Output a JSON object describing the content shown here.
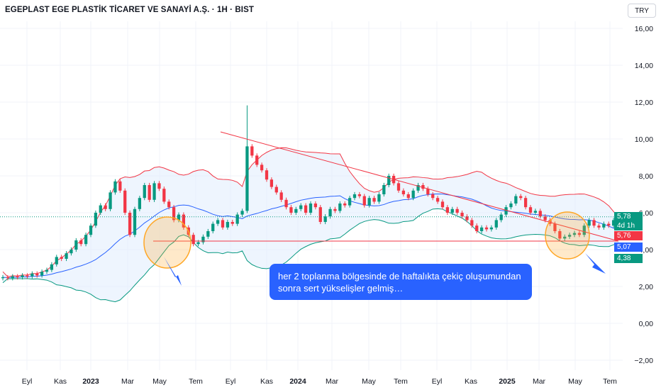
{
  "header": {
    "title": "EGEPLAST EGE PLASTİK TİCARET VE SANAYİ A.Ş. · 1H · BIST",
    "currency": "TRY"
  },
  "price_tags": {
    "last": "5,78",
    "countdown": "4d 1h",
    "upper": "5,76",
    "middle": "5,07",
    "lower": "4,38"
  },
  "annotation": {
    "text": "her 2 toplanma bölgesinde de haftalıkta çekiç oluşumundan sonra sert yükselişler gelmiş…"
  },
  "colors": {
    "up": "#089981",
    "down": "#f23645",
    "bb_upper": "#f23645",
    "bb_basis": "#2962ff",
    "bb_lower": "#089981",
    "bb_fill": "#e3effd",
    "trendline": "#f23645",
    "highlight_circle": "#ffa726",
    "note_bg": "#2962ff"
  },
  "chart_data": {
    "type": "candlestick",
    "symbol": "EGEPLAST EGE PLASTİK TİCARET VE SANAYİ A.Ş.",
    "interval": "1H",
    "exchange": "BIST",
    "ylim": [
      -2,
      16
    ],
    "yticks": [
      -2,
      0,
      2,
      4,
      6,
      8,
      10,
      12,
      14,
      16
    ],
    "ytick_labels": [
      "−2,00",
      "0,00",
      "2,00",
      "4,00",
      "6,00",
      "8,00",
      "10,00",
      "12,00",
      "14,00",
      "16,00"
    ],
    "xtick_labels": [
      "Eyl",
      "Kas",
      "2023",
      "Mar",
      "May",
      "Tem",
      "Eyl",
      "Kas",
      "2024",
      "Mar",
      "May",
      "Tem",
      "Eyl",
      "Kas",
      "2025",
      "Mar",
      "May",
      "Tem"
    ],
    "xtick_bold": [
      false,
      false,
      true,
      false,
      false,
      false,
      false,
      false,
      true,
      false,
      false,
      false,
      false,
      false,
      true,
      false,
      false,
      false
    ],
    "closes": [
      2.5,
      2.45,
      2.55,
      2.5,
      2.6,
      2.55,
      2.7,
      2.6,
      2.8,
      2.9,
      3.2,
      3.6,
      3.5,
      3.8,
      4.0,
      4.5,
      4.3,
      4.8,
      5.3,
      6.0,
      6.4,
      6.2,
      7.1,
      7.7,
      7.2,
      6.0,
      4.8,
      6.2,
      6.8,
      7.5,
      6.7,
      7.6,
      7.3,
      6.6,
      6.3,
      5.6,
      5.9,
      5.2,
      4.8,
      4.3,
      4.4,
      4.7,
      5.0,
      5.4,
      5.6,
      5.2,
      5.5,
      5.4,
      5.9,
      6.1,
      9.6,
      9.1,
      8.6,
      8.3,
      7.8,
      7.4,
      7.1,
      6.7,
      6.3,
      6.0,
      6.2,
      6.4,
      6.0,
      6.5,
      6.3,
      5.5,
      5.8,
      6.2,
      6.1,
      6.5,
      6.4,
      6.8,
      7.0,
      6.9,
      6.4,
      6.8,
      6.6,
      7.0,
      7.5,
      8.0,
      7.6,
      7.2,
      7.0,
      6.8,
      7.2,
      7.5,
      7.3,
      7.0,
      6.8,
      6.6,
      6.3,
      6.0,
      6.2,
      6.0,
      5.8,
      5.6,
      5.3,
      5.0,
      5.2,
      5.1,
      5.2,
      5.6,
      5.9,
      6.3,
      6.5,
      6.9,
      6.8,
      6.3,
      6.0,
      6.1,
      5.8,
      5.6,
      5.4,
      5.0,
      4.6,
      4.7,
      4.8,
      4.9,
      4.8,
      5.3,
      5.6,
      5.3,
      5.2,
      5.4,
      5.3,
      5.6,
      5.78
    ],
    "bollinger": {
      "upper_last": 5.76,
      "basis_last": 5.07,
      "lower_last": 4.38
    },
    "last_price": 5.78,
    "countdown": "4d 1h",
    "annotation_circles": [
      "May 2023",
      "Apr 2025"
    ],
    "trendlines": [
      "descending resistance from Sep 2023 peak to Jun 2025",
      "horizontal support near 4,5"
    ]
  }
}
